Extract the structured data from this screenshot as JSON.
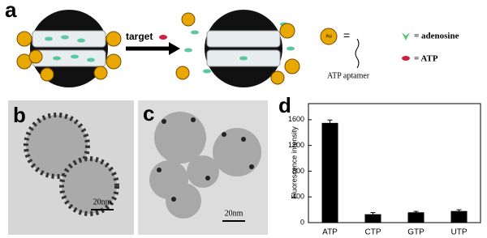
{
  "panel_a": {
    "label": "a",
    "arrow_label": "target",
    "gold_label": "Au",
    "equals": "=",
    "aptamer_label": "ATP aptamer",
    "adenosine_label": "= adenosine",
    "atp_label": "= ATP"
  },
  "panel_b": {
    "label": "b",
    "scale_bar": "20nm"
  },
  "panel_c": {
    "label": "c",
    "scale_bar": "20nm"
  },
  "chart_data": {
    "type": "bar",
    "label": "d",
    "y_label": "Fluorescence intensity",
    "categories": [
      "ATP",
      "CTP",
      "GTP",
      "UTP"
    ],
    "values": [
      1550,
      130,
      160,
      180
    ],
    "errors": [
      45,
      25,
      15,
      20
    ],
    "color": "#000000",
    "ylim": [
      0,
      1850
    ],
    "yticks": [
      0,
      400,
      800,
      1200,
      1600
    ]
  }
}
